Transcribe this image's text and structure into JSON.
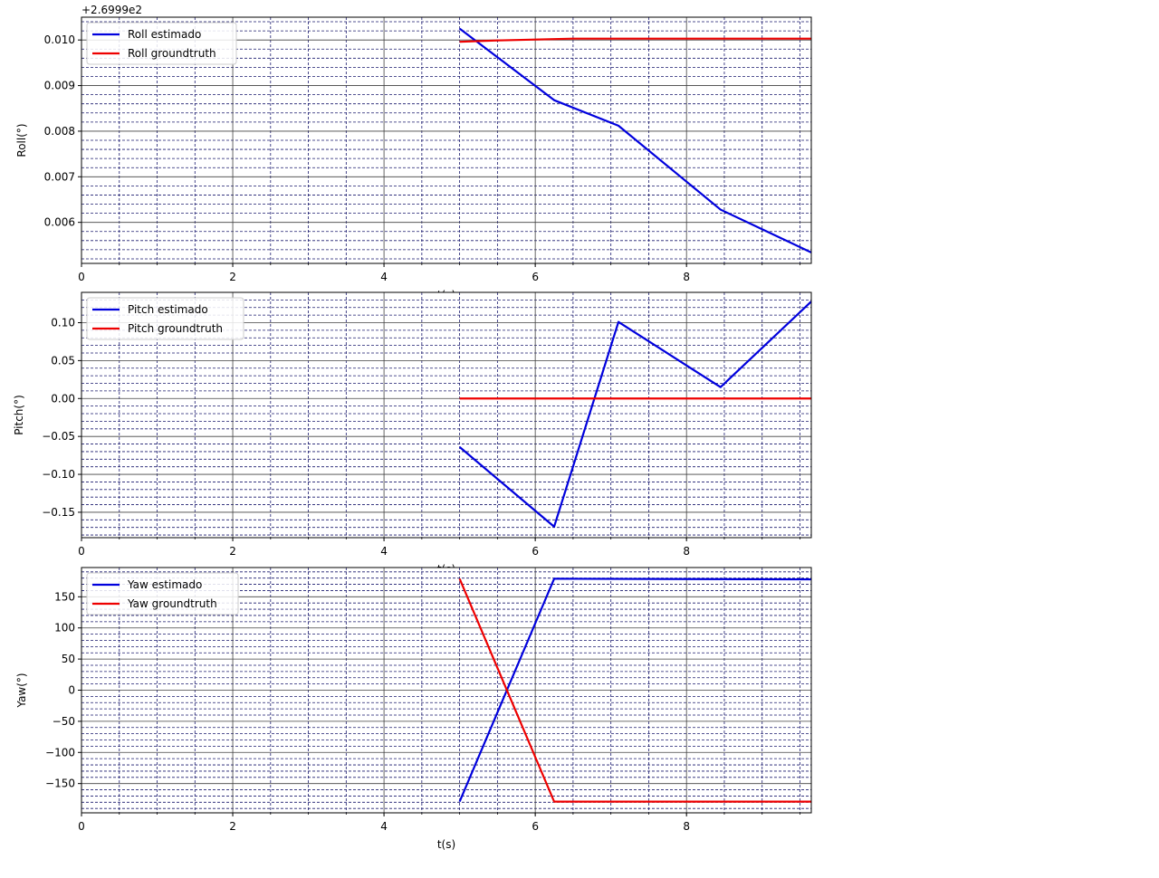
{
  "figure": {
    "background": "#ffffff",
    "grid_major_color": "#404040",
    "grid_minor_color": "#1a1a6e",
    "series_colors": {
      "estimado": "#0000dd",
      "groundtruth": "#ee0000"
    }
  },
  "chart_data": [
    {
      "type": "line",
      "ylabel": "Roll(°)",
      "xlabel": "t(s)",
      "offset_text": "+2.6999e2",
      "xlim": [
        0,
        9.65
      ],
      "ylim": [
        0.0051,
        0.0105
      ],
      "xticks": [
        0,
        2,
        4,
        6,
        8
      ],
      "xtick_labels": [
        "0",
        "2",
        "4",
        "6",
        "8"
      ],
      "yticks": [
        0.006,
        0.007,
        0.008,
        0.009,
        0.01
      ],
      "ytick_labels": [
        "0.006",
        "0.007",
        "0.008",
        "0.009",
        "0.010"
      ],
      "grid": true,
      "minor_grid": true,
      "legend_position": "top-left",
      "series": [
        {
          "name": "Roll estimado",
          "color": "#0000dd",
          "x": [
            5.0,
            6.25,
            7.1,
            8.45,
            9.65
          ],
          "y": [
            0.01025,
            0.00868,
            0.00812,
            0.00628,
            0.00534
          ]
        },
        {
          "name": "Roll groundtruth",
          "color": "#ee0000",
          "x": [
            5.0,
            5.5,
            6.0,
            6.5,
            7.0,
            8.0,
            9.0,
            9.65
          ],
          "y": [
            0.00996,
            0.00999,
            0.01001,
            0.01003,
            0.01003,
            0.01003,
            0.01003,
            0.01003
          ]
        }
      ]
    },
    {
      "type": "line",
      "ylabel": "Pitch(°)",
      "xlabel": "t(s)",
      "xlim": [
        0,
        9.65
      ],
      "ylim": [
        -0.1835,
        0.14
      ],
      "xticks": [
        0,
        2,
        4,
        6,
        8
      ],
      "xtick_labels": [
        "0",
        "2",
        "4",
        "6",
        "8"
      ],
      "yticks": [
        -0.15,
        -0.1,
        -0.05,
        0.0,
        0.05,
        0.1
      ],
      "ytick_labels": [
        "−0.15",
        "−0.10",
        "−0.05",
        "0.00",
        "0.05",
        "0.10"
      ],
      "grid": true,
      "minor_grid": true,
      "legend_position": "top-left",
      "series": [
        {
          "name": "Pitch estimado",
          "color": "#0000dd",
          "x": [
            5.0,
            6.25,
            7.1,
            8.45,
            9.65
          ],
          "y": [
            -0.064,
            -0.169,
            0.101,
            0.015,
            0.128
          ]
        },
        {
          "name": "Pitch groundtruth",
          "color": "#ee0000",
          "x": [
            5.0,
            9.65
          ],
          "y": [
            0.0,
            0.0
          ]
        }
      ]
    },
    {
      "type": "line",
      "ylabel": "Yaw(°)",
      "xlabel": "t(s)",
      "xlim": [
        0,
        9.65
      ],
      "ylim": [
        -197,
        197
      ],
      "xticks": [
        0,
        2,
        4,
        6,
        8
      ],
      "xtick_labels": [
        "0",
        "2",
        "4",
        "6",
        "8"
      ],
      "yticks": [
        -150,
        -100,
        -50,
        0,
        50,
        100,
        150
      ],
      "ytick_labels": [
        "−150",
        "−100",
        "−50",
        "0",
        "50",
        "100",
        "150"
      ],
      "grid": true,
      "minor_grid": true,
      "legend_position": "top-left",
      "series": [
        {
          "name": "Yaw estimado",
          "color": "#0000dd",
          "x": [
            5.0,
            6.25,
            9.65
          ],
          "y": [
            -179,
            179,
            178
          ]
        },
        {
          "name": "Yaw groundtruth",
          "color": "#ee0000",
          "x": [
            5.0,
            6.25,
            9.65
          ],
          "y": [
            179,
            -179,
            -179
          ]
        }
      ]
    }
  ]
}
